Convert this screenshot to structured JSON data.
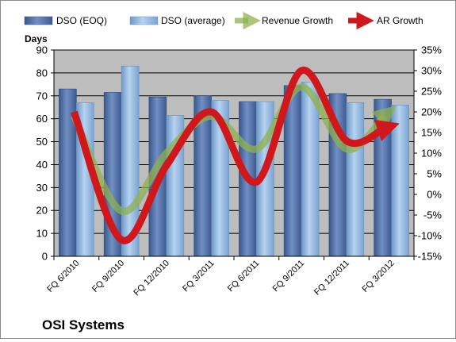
{
  "chart_data": {
    "type": "bar",
    "categories": [
      "FQ 6/2010",
      "FQ 9/2010",
      "FQ 12/2010",
      "FQ 3/2011",
      "FQ 6/2011",
      "FQ 9/2011",
      "FQ 12/2011",
      "FQ 3/2012"
    ],
    "y_axis_title": "Days",
    "ylim": [
      0,
      90
    ],
    "yticks": [
      0,
      10,
      20,
      30,
      40,
      50,
      60,
      70,
      80,
      90
    ],
    "y2lim": [
      -15,
      35
    ],
    "y2ticks": [
      -15,
      -10,
      -5,
      0,
      5,
      10,
      15,
      20,
      25,
      30,
      35
    ],
    "y2_unit": "%",
    "series": [
      {
        "name": "DSO (EOQ)",
        "kind": "bar",
        "axis": "left",
        "values": [
          73,
          71.5,
          69.5,
          70,
          67.5,
          74.5,
          71,
          68.5
        ]
      },
      {
        "name": "DSO (average)",
        "kind": "bar",
        "axis": "left",
        "values": [
          67,
          83,
          61.5,
          68,
          67.5,
          76,
          67,
          66
        ]
      },
      {
        "name": "Revenue Growth",
        "kind": "line",
        "axis": "right",
        "values": [
          19,
          -4,
          10,
          19,
          11,
          26,
          11,
          19
        ]
      },
      {
        "name": "AR Growth",
        "kind": "line",
        "axis": "right",
        "values": [
          20,
          -11,
          7,
          20,
          3,
          30,
          13,
          16
        ]
      }
    ],
    "colors": {
      "dso_eoq": "#4f6fa8",
      "dso_avg": "#8fb6df",
      "revenue_growth": "#8fb24e",
      "ar_growth": "#d0181c",
      "plot_bg": "#bdbdbd",
      "grid": "#000000"
    },
    "legend_position": "top",
    "grid": true
  },
  "footer": {
    "company": "OSI Systems"
  }
}
